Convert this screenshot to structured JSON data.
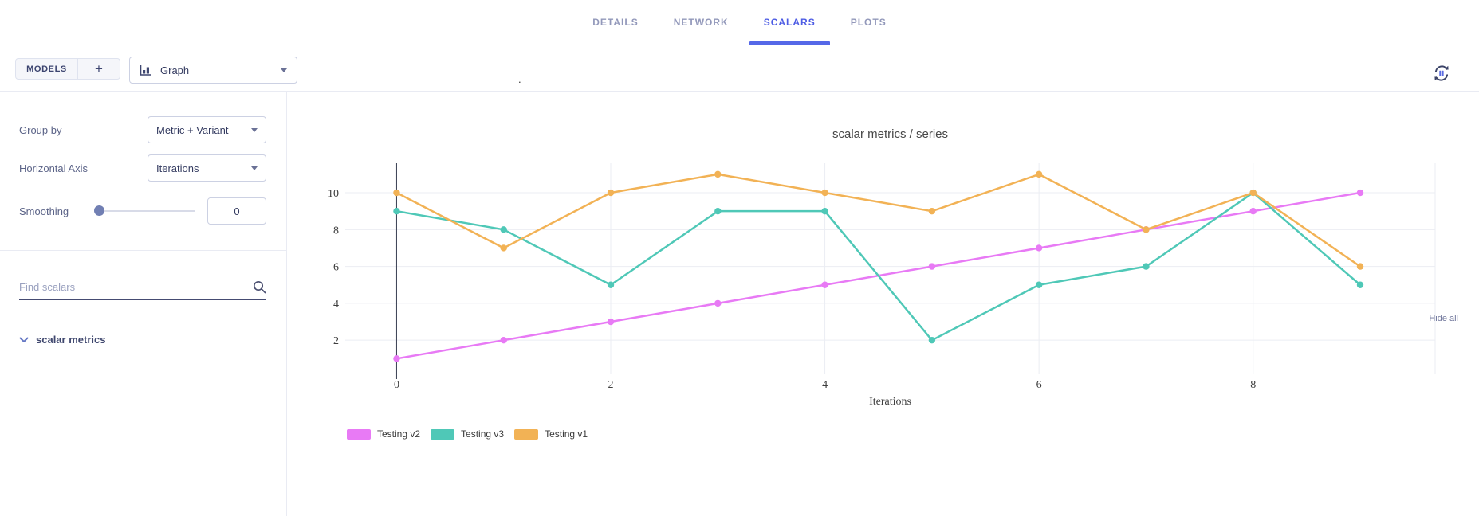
{
  "header": {
    "tabs": [
      {
        "label": "DETAILS",
        "active": false
      },
      {
        "label": "NETWORK",
        "active": false
      },
      {
        "label": "SCALARS",
        "active": true
      },
      {
        "label": "PLOTS",
        "active": false
      }
    ]
  },
  "toolbar": {
    "models_label": "MODELS",
    "add_label": "+",
    "view_selector_value": "Graph"
  },
  "sidebar": {
    "group_by": {
      "label": "Group by",
      "value": "Metric + Variant"
    },
    "horizontal_axis": {
      "label": "Horizontal Axis",
      "value": "Iterations"
    },
    "smoothing": {
      "label": "Smoothing",
      "value": "0"
    },
    "search": {
      "placeholder": "Find scalars"
    },
    "hide_all_label": "Hide all",
    "sections": [
      {
        "label": "scalar metrics",
        "expanded": true
      }
    ]
  },
  "main": {
    "group_title": "."
  },
  "chart_data": {
    "type": "line",
    "title": "scalar metrics / series",
    "xlabel": "Iterations",
    "x": [
      0,
      1,
      2,
      3,
      4,
      5,
      6,
      7,
      8,
      9
    ],
    "series": [
      {
        "name": "Testing v2",
        "color": "#e87af5",
        "values": [
          1,
          2,
          3,
          4,
          5,
          6,
          7,
          8,
          9,
          10
        ]
      },
      {
        "name": "Testing v3",
        "color": "#4fc8b7",
        "values": [
          9,
          8,
          5,
          9,
          9,
          2,
          5,
          6,
          10,
          5
        ]
      },
      {
        "name": "Testing v1",
        "color": "#f2b255",
        "values": [
          10,
          7,
          10,
          11,
          10,
          9,
          11,
          8,
          10,
          6
        ]
      }
    ],
    "xticks": [
      0,
      2,
      4,
      6,
      8
    ],
    "yticks": [
      2,
      4,
      6,
      8,
      10
    ],
    "xlim": [
      -0.48,
      9.7
    ],
    "ylim": [
      0.15,
      11.6
    ],
    "grid": true,
    "legend_position": "bottom"
  },
  "colors": {
    "accent": "#4d5ce4",
    "tab_inactive": "#9298ba",
    "grid_line": "#ebedf3",
    "zero_line": "#3a3f52"
  }
}
